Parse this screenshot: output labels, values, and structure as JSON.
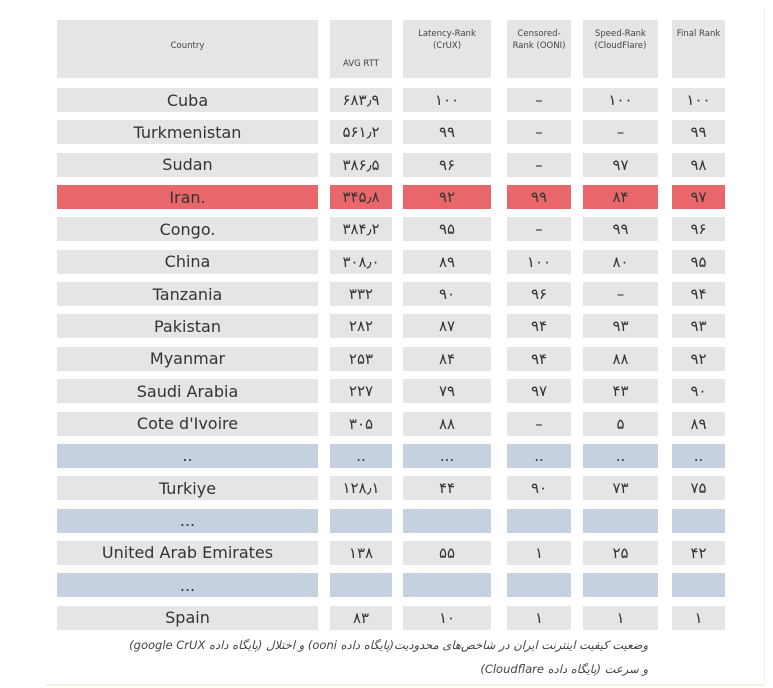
{
  "table": {
    "header": [
      "Country",
      "AVG RTT",
      "Latency-Rank (CrUX)",
      "Censored-Rank (OONI)",
      "Speed-Rank (CloudFlare)",
      "Final Rank"
    ],
    "rows": [
      {
        "cells": [
          "Cuba",
          "۶۸۳٫۹",
          "۱۰۰",
          "–",
          "۱۰۰",
          "۱۰۰"
        ]
      },
      {
        "cells": [
          "Turkmenistan",
          "۵۶۱٫۲",
          "۹۹",
          "–",
          "–",
          "۹۹"
        ]
      },
      {
        "cells": [
          "Sudan",
          "۳۸۶٫۵",
          "۹۶",
          "–",
          "۹۷",
          "۹۸"
        ]
      },
      {
        "cells": [
          "Iran.",
          "۳۴۵٫۸",
          "۹۲",
          "۹۹",
          "۸۴",
          "۹۷"
        ],
        "color": "#e9676b"
      },
      {
        "cells": [
          "Congo.",
          "۳۸۴٫۲",
          "۹۵",
          "–",
          "۹۹",
          "۹۶"
        ]
      },
      {
        "cells": [
          "China",
          "۳۰۸٫۰",
          "۸۹",
          "۱۰۰",
          "۸۰",
          "۹۵"
        ]
      },
      {
        "cells": [
          "Tanzania",
          "۳۳۲",
          "۹۰",
          "۹۶",
          "–",
          "۹۴"
        ]
      },
      {
        "cells": [
          "Pakistan",
          "۲۸۲",
          "۸۷",
          "۹۴",
          "۹۳",
          "۹۳"
        ]
      },
      {
        "cells": [
          "Myanmar",
          "۲۵۳",
          "۸۴",
          "۹۴",
          "۸۸",
          "۹۲"
        ]
      },
      {
        "cells": [
          "Saudi Arabia",
          "۲۲۷",
          "۷۹",
          "۹۷",
          "۴۳",
          "۹۰"
        ]
      },
      {
        "cells": [
          "Cote d'Ivoire",
          "۳۰۵",
          "۸۸",
          "–",
          "۵",
          "۸۹"
        ]
      },
      {
        "cells": [
          "..",
          "..",
          "...",
          "..",
          "..",
          ".."
        ],
        "color": "#c6d1e0"
      },
      {
        "cells": [
          "Turkiye",
          "۱۲۸٫۱",
          "۴۴",
          "۹۰",
          "۷۳",
          "۷۵"
        ]
      },
      {
        "cells": [
          "..."
        ],
        "color": "#c6d1e0"
      },
      {
        "cells": [
          "United Arab Emirates",
          "۱۳۸",
          "۵۵",
          "۱",
          "۲۵",
          "۴۲"
        ]
      },
      {
        "cells": [
          "..."
        ],
        "color": "#c6d1e0"
      },
      {
        "cells": [
          "Spain",
          "۸۳",
          "۱۰",
          "۱",
          "۱",
          "۱"
        ]
      }
    ],
    "caption": [
      "وضعیت کیفیت اینترنت ایران در شاخص‌های محدودیت(پایگاه داده ooni) و اختلال (پایگاه داده google CrUX)",
      "و سرعت (پایگاه داده Cloudflare)"
    ]
  }
}
